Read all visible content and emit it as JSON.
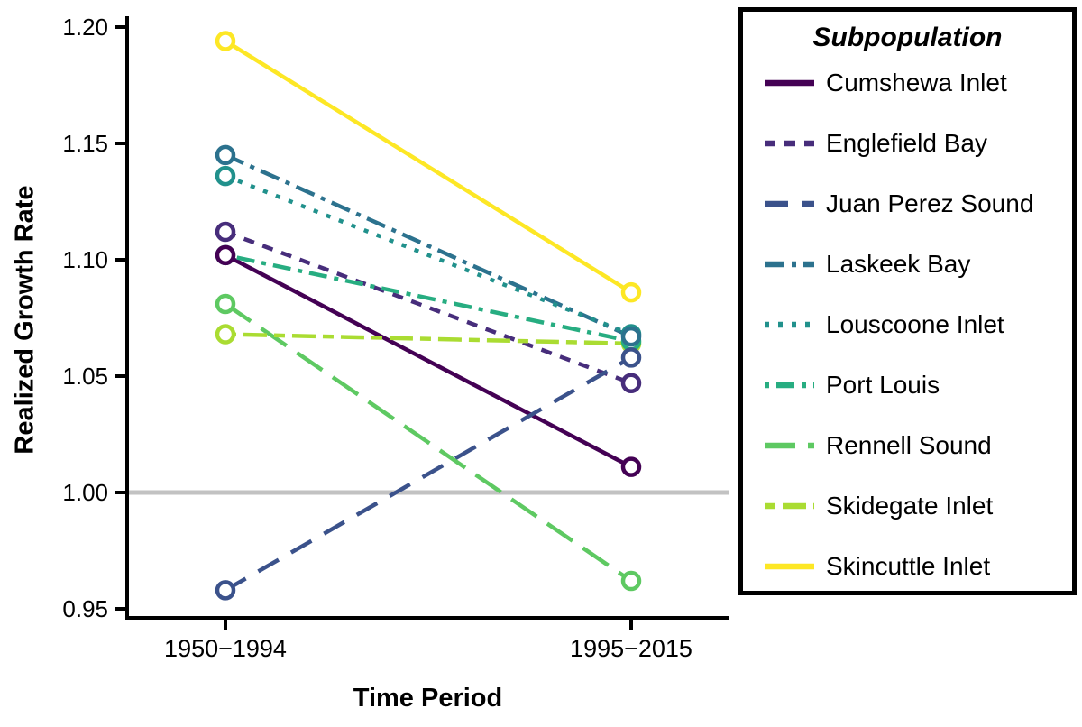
{
  "figure": {
    "background": "#ffffff",
    "axis_color": "#000000"
  },
  "chart_data": {
    "type": "line",
    "title": "",
    "xlabel": "Time Period",
    "ylabel": "Realized Growth Rate",
    "categories": [
      "1950−1994",
      "1995−2015"
    ],
    "y_ticks": [
      {
        "value": 0.95,
        "label": "0.95"
      },
      {
        "value": 1.0,
        "label": "1.00"
      },
      {
        "value": 1.05,
        "label": "1.05"
      },
      {
        "value": 1.1,
        "label": "1.10"
      },
      {
        "value": 1.15,
        "label": "1.15"
      },
      {
        "value": 1.2,
        "label": "1.20"
      }
    ],
    "ylim": [
      0.945,
      1.205
    ],
    "grid": false,
    "reference_line": {
      "value": 1.0,
      "color": "#c2c2c2"
    },
    "legend_position": "right",
    "legend_title": "Subpopulation",
    "series": [
      {
        "name": "Cumshewa Inlet",
        "slug": "cumshewa-inlet",
        "color": "#440154",
        "dash": "solid",
        "values": [
          1.102,
          1.011
        ]
      },
      {
        "name": "Englefield Bay",
        "slug": "englefield-bay",
        "color": "#472d7b",
        "dash": "12 10",
        "values": [
          1.112,
          1.047
        ]
      },
      {
        "name": "Juan Perez Sound",
        "slug": "juan-perez-sound",
        "color": "#3b528b",
        "dash": "26 16",
        "values": [
          0.958,
          1.058
        ]
      },
      {
        "name": "Laskeek Bay",
        "slug": "laskeek-bay",
        "color": "#2c728e",
        "dash": "22 8 5 8",
        "values": [
          1.145,
          1.067
        ]
      },
      {
        "name": "Louscoone Inlet",
        "slug": "louscoone-inlet",
        "color": "#21918c",
        "dash": "5 10",
        "values": [
          1.136,
          1.068
        ]
      },
      {
        "name": "Port Louis",
        "slug": "port-louis",
        "color": "#27ad81",
        "dash": "5 8 20 8",
        "values": [
          1.102,
          1.065
        ]
      },
      {
        "name": "Rennell Sound",
        "slug": "rennell-sound",
        "color": "#5ec962",
        "dash": "34 14",
        "values": [
          1.081,
          0.962
        ]
      },
      {
        "name": "Skidegate Inlet",
        "slug": "skidegate-inlet",
        "color": "#aadc32",
        "dash": "12 8 26 8",
        "values": [
          1.068,
          1.064
        ]
      },
      {
        "name": "Skincuttle Inlet",
        "slug": "skincuttle-inlet",
        "color": "#fde725",
        "dash": "solid",
        "values": [
          1.194,
          1.086
        ]
      }
    ]
  }
}
